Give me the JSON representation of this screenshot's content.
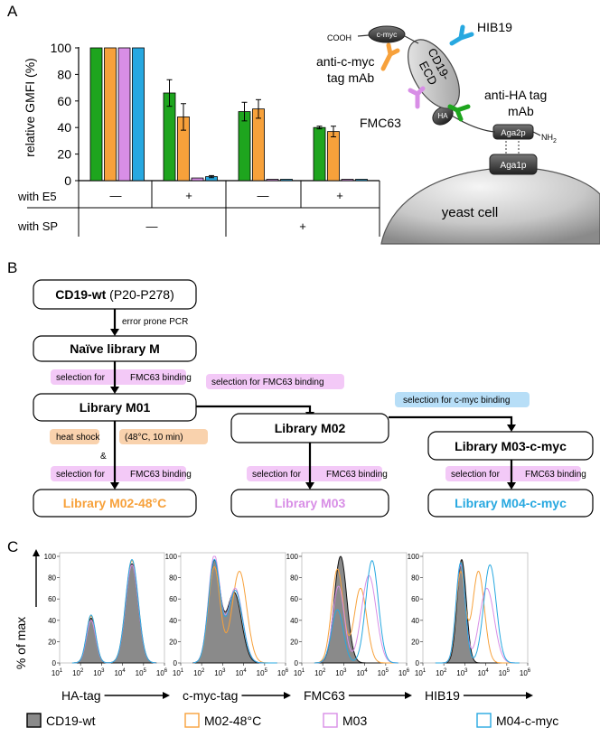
{
  "colors": {
    "green": "#1ea51e",
    "orange": "#f7a13b",
    "purple": "#d88ee6",
    "blue": "#27a8e0",
    "gray": "#888888"
  },
  "panels": {
    "a": "A",
    "b": "B",
    "c": "C"
  },
  "chart_data": [
    {
      "type": "bar",
      "ylabel": "relative GMFI (%)",
      "ylim": [
        0,
        100
      ],
      "yticks": [
        "0",
        "20",
        "40",
        "60",
        "80",
        "100"
      ],
      "series": [
        {
          "name": "green",
          "values": [
            100,
            66,
            52,
            40
          ],
          "errors": [
            0,
            10,
            7,
            1
          ]
        },
        {
          "name": "orange",
          "values": [
            100,
            48,
            54,
            37
          ],
          "errors": [
            0,
            10,
            7,
            4
          ]
        },
        {
          "name": "purple",
          "values": [
            100,
            2,
            1,
            1
          ],
          "errors": [
            0,
            0.5,
            0.5,
            0.5
          ]
        },
        {
          "name": "blue",
          "values": [
            100,
            3,
            1,
            1
          ],
          "errors": [
            0,
            0.8,
            0.5,
            0.5
          ]
        }
      ],
      "rows": {
        "e5_label": "with E5",
        "e5_values": [
          "—",
          "+",
          "—",
          "+"
        ],
        "sp_label": "with SP",
        "sp_values": [
          "—",
          "+"
        ]
      }
    },
    {
      "type": "histogram",
      "ylabel": "% of max",
      "yticks": [
        "0",
        "20",
        "40",
        "60",
        "80",
        "100"
      ],
      "xtick_exponents": [
        "1",
        "2",
        "3",
        "4",
        "5",
        "6"
      ],
      "xtick_base": "10",
      "panels": [
        {
          "xlabel": "HA-tag",
          "series": [
            {
              "name": "CD19-wt",
              "peaks": [
                [
                  2.5,
                  0.22,
                  42
                ],
                [
                  4.45,
                  0.3,
                  93
                ]
              ]
            },
            {
              "name": "M02-48°C",
              "peaks": [
                [
                  2.5,
                  0.22,
                  44
                ],
                [
                  4.45,
                  0.3,
                  96
                ]
              ]
            },
            {
              "name": "M03",
              "peaks": [
                [
                  2.5,
                  0.22,
                  40
                ],
                [
                  4.45,
                  0.3,
                  92
                ]
              ]
            },
            {
              "name": "M04-c-myc",
              "peaks": [
                [
                  2.5,
                  0.22,
                  45
                ],
                [
                  4.45,
                  0.3,
                  97
                ]
              ]
            }
          ]
        },
        {
          "xlabel": "c-myc-tag",
          "series": [
            {
              "name": "CD19-wt",
              "peaks": [
                [
                  2.6,
                  0.28,
                  95
                ],
                [
                  3.55,
                  0.35,
                  66
                ]
              ]
            },
            {
              "name": "M02-48°C",
              "peaks": [
                [
                  2.6,
                  0.28,
                  90
                ],
                [
                  3.8,
                  0.35,
                  86
                ]
              ]
            },
            {
              "name": "M03",
              "peaks": [
                [
                  2.6,
                  0.28,
                  100
                ],
                [
                  3.6,
                  0.35,
                  70
                ]
              ]
            },
            {
              "name": "M04-c-myc",
              "peaks": [
                [
                  2.6,
                  0.28,
                  96
                ],
                [
                  3.6,
                  0.35,
                  68
                ]
              ]
            }
          ]
        },
        {
          "xlabel": "FMC63",
          "series": [
            {
              "name": "CD19-wt",
              "peaks": [
                [
                  2.85,
                  0.3,
                  100
                ]
              ]
            },
            {
              "name": "M02-48°C",
              "peaks": [
                [
                  2.7,
                  0.28,
                  88
                ],
                [
                  3.8,
                  0.3,
                  70
                ]
              ]
            },
            {
              "name": "M03",
              "peaks": [
                [
                  2.75,
                  0.28,
                  72
                ],
                [
                  4.2,
                  0.35,
                  82
                ]
              ]
            },
            {
              "name": "M04-c-myc",
              "peaks": [
                [
                  2.7,
                  0.28,
                  50
                ],
                [
                  4.35,
                  0.3,
                  96
                ]
              ]
            }
          ]
        },
        {
          "xlabel": "HIB19",
          "series": [
            {
              "name": "CD19-wt",
              "peaks": [
                [
                  2.85,
                  0.22,
                  97
                ]
              ]
            },
            {
              "name": "M02-48°C",
              "peaks": [
                [
                  2.8,
                  0.22,
                  85
                ],
                [
                  3.65,
                  0.28,
                  86
                ]
              ]
            },
            {
              "name": "M03",
              "peaks": [
                [
                  2.8,
                  0.22,
                  92
                ],
                [
                  4.05,
                  0.35,
                  70
                ]
              ]
            },
            {
              "name": "M04-c-myc",
              "peaks": [
                [
                  2.8,
                  0.22,
                  94
                ],
                [
                  4.2,
                  0.3,
                  92
                ]
              ]
            }
          ]
        }
      ],
      "legend": [
        "CD19-wt",
        "M02-48°C",
        "M03",
        "M04-c-myc"
      ]
    }
  ],
  "schematic": {
    "cooh": "COOH",
    "cmyc": "c-myc",
    "hib19": "HIB19",
    "anti_cmyc_1": "anti-c-myc",
    "anti_cmyc_2": "tag mAb",
    "cd19_1": "CD19-",
    "cd19_2": "ECD",
    "anti_ha_1": "anti-HA tag",
    "anti_ha_2": "mAb",
    "fmc63": "FMC63",
    "ha": "HA",
    "aga2p": "Aga2p",
    "nh2": "NH",
    "nh2_sub": "2",
    "aga1p": "Aga1p",
    "yeast": "yeast cell"
  },
  "flow": {
    "cd19wt_bold": "CD19-wt",
    "cd19wt_rest": " (P20-P278)",
    "error_pcr": "error prone PCR",
    "naive": "Naïve library M",
    "sel_fmc63": "selection for",
    "sel_fmc63_b": "FMC63 binding",
    "sel_fmc63_long": "selection for FMC63 binding",
    "m01": "Library M01",
    "m02": "Library M02",
    "sel_cmyc": "selection for c-myc binding",
    "heat_a": "heat shock",
    "heat_b": "(48°C, 10 min)",
    "amp": "&",
    "m03cmyc": "Library M03-c-myc",
    "m0248": "Library M02-48°C",
    "m03": "Library M03",
    "m04cmyc": "Library M04-c-myc"
  }
}
